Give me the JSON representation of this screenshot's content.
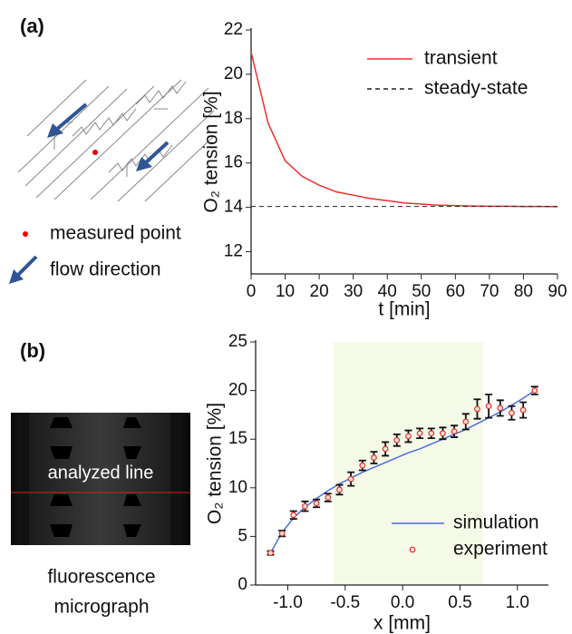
{
  "figure": {
    "panel_labels": [
      "(a)",
      "(b)"
    ],
    "schematic_legend": [
      "measured point",
      "flow direction"
    ],
    "micrograph_label": "analyzed line",
    "micrograph_caption": [
      "fluorescence",
      "micrograph"
    ]
  },
  "chart_data": [
    {
      "type": "line",
      "xlabel": "t [min]",
      "ylabel": "O₂ tension [%]",
      "x": [
        0,
        5,
        10,
        15,
        20,
        25,
        30,
        35,
        40,
        45,
        50,
        55,
        60,
        65,
        70,
        75,
        80,
        85,
        90
      ],
      "series": [
        {
          "name": "transient",
          "color": "#e8312f",
          "style": "solid",
          "values": [
            21,
            17.8,
            16.1,
            15.4,
            15.0,
            14.7,
            14.55,
            14.4,
            14.3,
            14.2,
            14.15,
            14.1,
            14.08,
            14.06,
            14.05,
            14.05,
            14.04,
            14.04,
            14.03
          ]
        },
        {
          "name": "steady-state",
          "color": "#222222",
          "style": "dashed",
          "values": [
            14.04,
            14.04,
            14.04,
            14.04,
            14.04,
            14.04,
            14.04,
            14.04,
            14.04,
            14.04,
            14.04,
            14.04,
            14.04,
            14.04,
            14.04,
            14.04,
            14.04,
            14.04,
            14.04
          ]
        }
      ],
      "xlim": [
        0,
        90
      ],
      "xticks": [
        0,
        10,
        20,
        30,
        40,
        50,
        60,
        70,
        80,
        90
      ],
      "ylim": [
        11,
        22
      ],
      "yticks": [
        12,
        14,
        16,
        18,
        20,
        22
      ],
      "legend": "upper right"
    },
    {
      "type": "line",
      "xlabel": "x [mm]",
      "ylabel": "O₂ tension [%]",
      "x": [
        -1.15,
        -1.05,
        -0.95,
        -0.85,
        -0.75,
        -0.65,
        -0.55,
        -0.45,
        -0.35,
        -0.25,
        -0.15,
        -0.05,
        0.05,
        0.15,
        0.25,
        0.35,
        0.45,
        0.55,
        0.65,
        0.75,
        0.85,
        0.95,
        1.05,
        1.15
      ],
      "series": [
        {
          "name": "simulation",
          "color": "#4a6ee0",
          "style": "solid",
          "values": [
            3.3,
            5.4,
            6.9,
            8.0,
            8.9,
            9.7,
            10.4,
            11.0,
            11.6,
            12.1,
            12.6,
            13.1,
            13.6,
            14.0,
            14.5,
            15.0,
            15.5,
            16.0,
            16.6,
            17.2,
            17.8,
            18.5,
            19.2,
            20.0
          ]
        },
        {
          "name": "experiment",
          "color": "#e03030",
          "style": "points",
          "values": [
            3.3,
            5.3,
            7.2,
            8.1,
            8.4,
            9.0,
            9.8,
            10.9,
            12.3,
            13.1,
            14.0,
            14.9,
            15.3,
            15.6,
            15.6,
            15.6,
            15.8,
            16.8,
            18.1,
            18.4,
            18.2,
            17.7,
            18.0,
            20.0
          ],
          "errors": [
            0.2,
            0.3,
            0.4,
            0.5,
            0.4,
            0.4,
            0.5,
            0.7,
            0.5,
            0.6,
            0.7,
            0.6,
            0.6,
            0.5,
            0.5,
            0.6,
            0.6,
            0.8,
            1.0,
            1.2,
            0.8,
            0.7,
            0.8,
            0.4
          ]
        }
      ],
      "highlight_range": [
        -0.6,
        0.7
      ],
      "xlim": [
        -1.28,
        1.27
      ],
      "xticks": [
        {
          "value": -1.0,
          "label": "-1.0"
        },
        {
          "value": -0.5,
          "label": "-0.5"
        },
        {
          "value": 0,
          "label": "0.0"
        },
        {
          "value": 0.5,
          "label": "0.5"
        },
        {
          "value": 1.0,
          "label": "1.0"
        }
      ],
      "ylim": [
        0,
        25
      ],
      "yticks": [
        0,
        5,
        10,
        15,
        20,
        25
      ],
      "legend": "lower right"
    }
  ]
}
